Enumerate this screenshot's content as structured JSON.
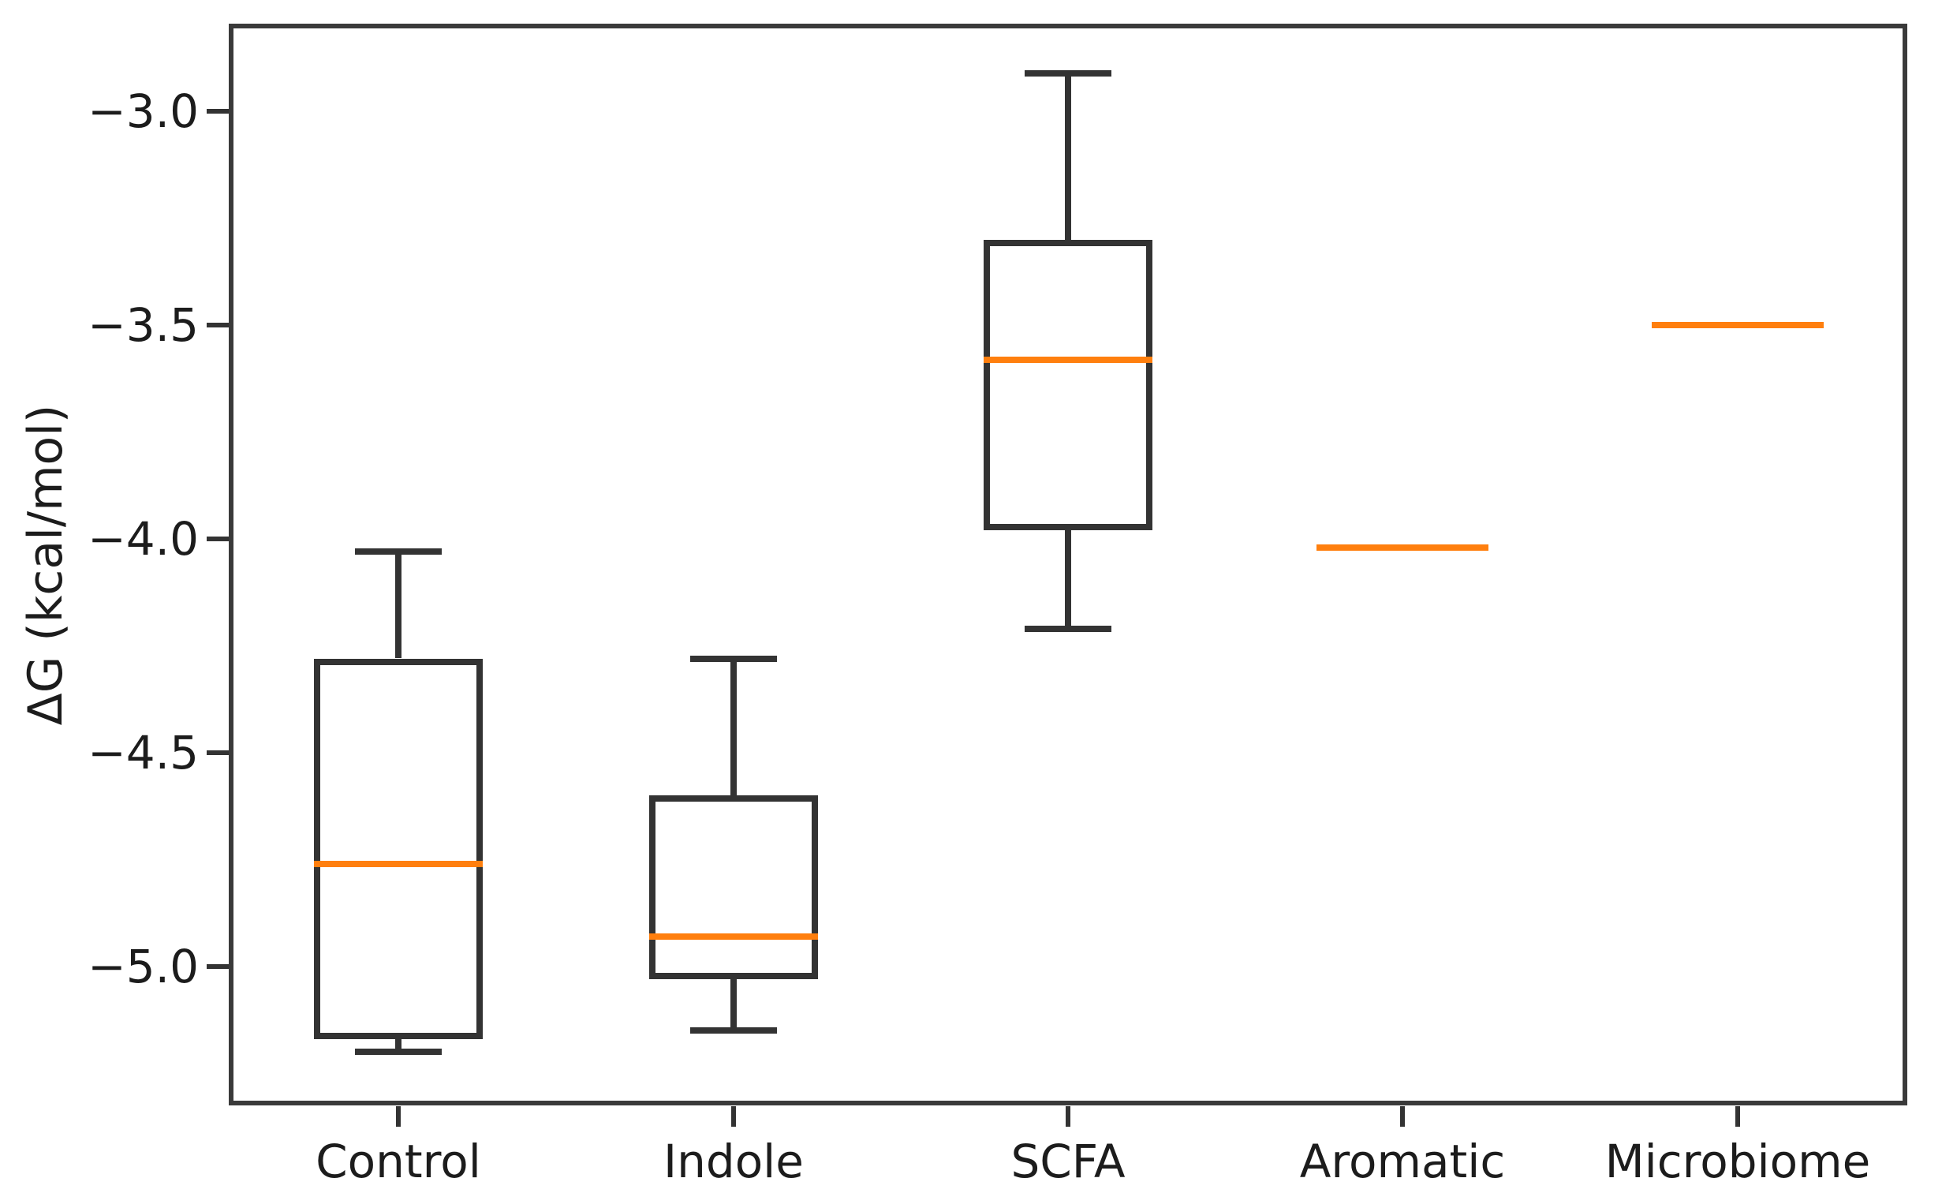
{
  "chart_data": {
    "type": "box",
    "title": "",
    "ylabel": "ΔG (kcal/mol)",
    "xlabel": "",
    "categories": [
      "Control",
      "Indole",
      "SCFA",
      "Aromatic",
      "Microbiome"
    ],
    "yticks": [
      -3.0,
      -3.5,
      -4.0,
      -4.5,
      -5.0
    ],
    "ytick_labels": [
      "−3.0",
      "−3.5",
      "−4.0",
      "−4.5",
      "−5.0"
    ],
    "ylim": [
      -5.32,
      -2.8
    ],
    "grid": false,
    "legend": "none",
    "series": [
      {
        "category": "Control",
        "whisker_low": -5.2,
        "q1": -5.17,
        "median": -4.76,
        "q3": -4.28,
        "whisker_high": -4.03,
        "degenerate": false
      },
      {
        "category": "Indole",
        "whisker_low": -5.15,
        "q1": -5.03,
        "median": -4.93,
        "q3": -4.6,
        "whisker_high": -4.28,
        "degenerate": false
      },
      {
        "category": "SCFA",
        "whisker_low": -4.21,
        "q1": -3.98,
        "median": -3.58,
        "q3": -3.3,
        "whisker_high": -2.91,
        "degenerate": false
      },
      {
        "category": "Aromatic",
        "whisker_low": -4.02,
        "q1": -4.02,
        "median": -4.02,
        "q3": -4.02,
        "whisker_high": -4.02,
        "degenerate": true
      },
      {
        "category": "Microbiome",
        "whisker_low": -3.5,
        "q1": -3.5,
        "median": -3.5,
        "q3": -3.5,
        "whisker_high": -3.5,
        "degenerate": true
      }
    ],
    "colors": {
      "median": "#ff7f0e",
      "box_line": "#333333",
      "text": "#1c1c1c"
    }
  }
}
